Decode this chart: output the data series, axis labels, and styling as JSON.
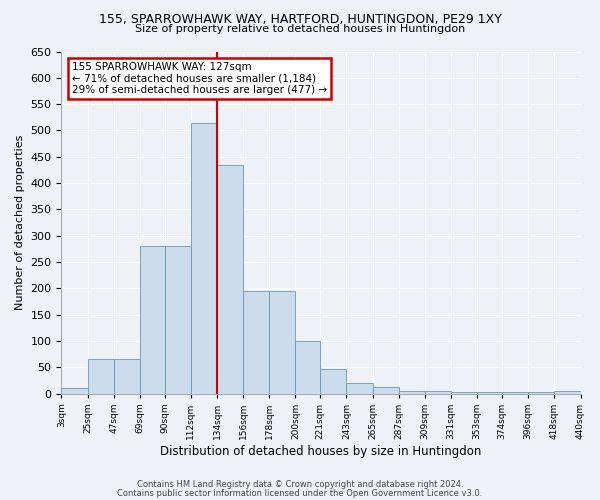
{
  "title1": "155, SPARROWHAWK WAY, HARTFORD, HUNTINGDON, PE29 1XY",
  "title2": "Size of property relative to detached houses in Huntingdon",
  "xlabel": "Distribution of detached houses by size in Huntingdon",
  "ylabel": "Number of detached properties",
  "bin_edges": [
    3,
    25,
    47,
    69,
    90,
    112,
    134,
    156,
    178,
    200,
    221,
    243,
    265,
    287,
    309,
    331,
    353,
    374,
    396,
    418,
    440
  ],
  "bin_heights": [
    10,
    65,
    65,
    280,
    280,
    515,
    435,
    195,
    195,
    100,
    47,
    20,
    12,
    5,
    5,
    3,
    3,
    2,
    2,
    5
  ],
  "bar_color": "#ccdcec",
  "bar_edge_color": "#6699bb",
  "vline_x": 134,
  "vline_color": "#cc0000",
  "ylim": [
    0,
    650
  ],
  "yticks": [
    0,
    50,
    100,
    150,
    200,
    250,
    300,
    350,
    400,
    450,
    500,
    550,
    600,
    650
  ],
  "xtick_labels": [
    "3sqm",
    "25sqm",
    "47sqm",
    "69sqm",
    "90sqm",
    "112sqm",
    "134sqm",
    "156sqm",
    "178sqm",
    "200sqm",
    "221sqm",
    "243sqm",
    "265sqm",
    "287sqm",
    "309sqm",
    "331sqm",
    "353sqm",
    "374sqm",
    "396sqm",
    "418sqm",
    "440sqm"
  ],
  "annotation_title": "155 SPARROWHAWK WAY: 127sqm",
  "annotation_line1": "← 71% of detached houses are smaller (1,184)",
  "annotation_line2": "29% of semi-detached houses are larger (477) →",
  "annotation_box_color": "#cc0000",
  "footer1": "Contains HM Land Registry data © Crown copyright and database right 2024.",
  "footer2": "Contains public sector information licensed under the Open Government Licence v3.0.",
  "bg_color": "#eef2f7",
  "plot_bg_color": "#eef2f7",
  "grid_color": "#ffffff"
}
